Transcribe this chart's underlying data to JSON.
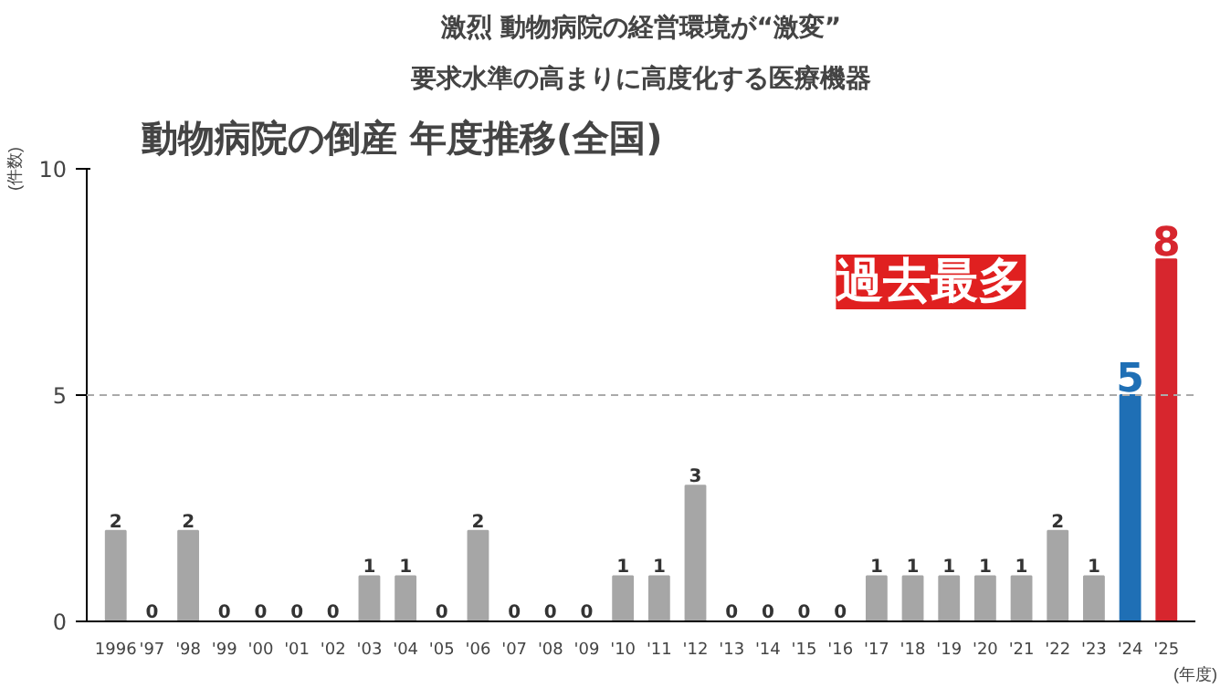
{
  "chart_data": {
    "type": "bar",
    "title": "動物病院の倒産 年度推移(全国)",
    "ylabel": "(件数)",
    "xlabel": "(年度)",
    "annotations": [
      "要求水準の高まりに高度化する医療機器",
      "激烈 動物病院の経営環境が“激変”",
      "過去最多"
    ],
    "categories": [
      "1996",
      "'97",
      "'98",
      "'99",
      "'00",
      "'01",
      "'02",
      "'03",
      "'04",
      "'05",
      "'06",
      "'07",
      "'08",
      "'09",
      "'10",
      "'11",
      "'12",
      "'13",
      "'14",
      "'15",
      "'16",
      "'17",
      "'18",
      "'19",
      "'20",
      "'21",
      "'22",
      "'23",
      "'24",
      "'25"
    ],
    "values": [
      2,
      0,
      2,
      0,
      0,
      0,
      0,
      1,
      1,
      0,
      2,
      0,
      0,
      0,
      1,
      1,
      3,
      0,
      0,
      0,
      0,
      1,
      1,
      1,
      1,
      1,
      2,
      1,
      5,
      8
    ],
    "colors": [
      "#a6a6a6",
      "#a6a6a6",
      "#a6a6a6",
      "#a6a6a6",
      "#a6a6a6",
      "#a6a6a6",
      "#a6a6a6",
      "#a6a6a6",
      "#a6a6a6",
      "#a6a6a6",
      "#a6a6a6",
      "#a6a6a6",
      "#a6a6a6",
      "#a6a6a6",
      "#a6a6a6",
      "#a6a6a6",
      "#a6a6a6",
      "#a6a6a6",
      "#a6a6a6",
      "#a6a6a6",
      "#a6a6a6",
      "#a6a6a6",
      "#a6a6a6",
      "#a6a6a6",
      "#a6a6a6",
      "#a6a6a6",
      "#a6a6a6",
      "#a6a6a6",
      "#1f6fb5",
      "#d7262e"
    ],
    "data_labels": true,
    "ylim": [
      0,
      10
    ],
    "yticks": [
      0,
      5,
      10
    ],
    "grid": false,
    "ref_lines": [
      {
        "axis": "y",
        "value": 5,
        "color": "#aaaaaa",
        "line_style": "dashed"
      }
    ]
  }
}
